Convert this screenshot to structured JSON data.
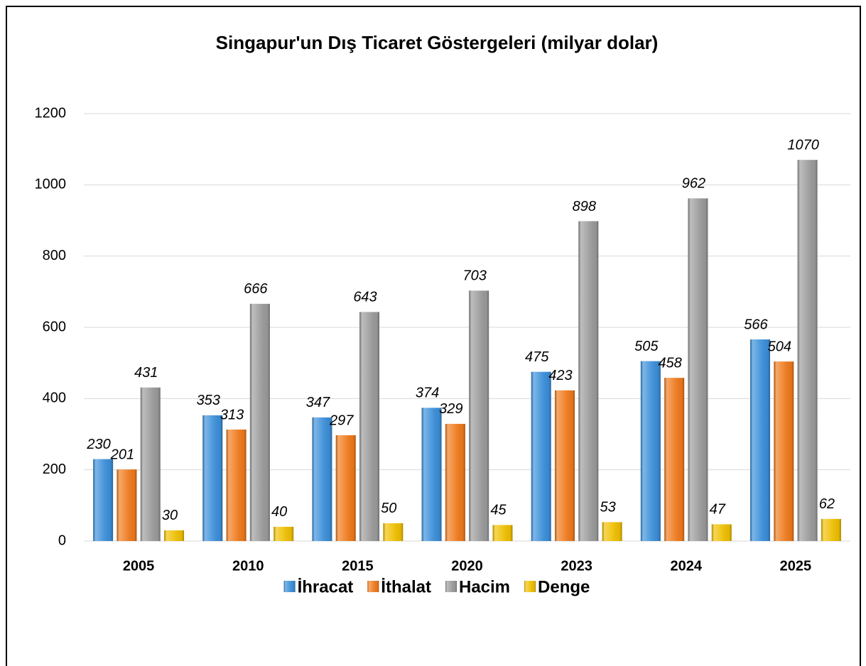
{
  "chart_data": {
    "type": "bar",
    "title": "Singapur'un Dış Ticaret Göstergeleri (milyar dolar)",
    "categories": [
      "2005",
      "2010",
      "2015",
      "2020",
      "2023",
      "2024",
      "2025"
    ],
    "series": [
      {
        "name": "İhracat",
        "color": "#3b8fda",
        "values": [
          230,
          353,
          347,
          374,
          475,
          505,
          566
        ]
      },
      {
        "name": "İthalat",
        "color": "#f07a1c",
        "values": [
          201,
          313,
          297,
          329,
          423,
          458,
          504
        ]
      },
      {
        "name": "Hacim",
        "color": "#9b9b9b",
        "values": [
          431,
          666,
          643,
          703,
          898,
          962,
          1070
        ]
      },
      {
        "name": "Denge",
        "color": "#f0c000",
        "values": [
          30,
          40,
          50,
          45,
          53,
          47,
          62
        ]
      }
    ],
    "ylim": [
      0,
      1200
    ],
    "yticks": [
      0,
      200,
      400,
      600,
      800,
      1000,
      1200
    ],
    "grid": true,
    "legend": "bottom"
  }
}
